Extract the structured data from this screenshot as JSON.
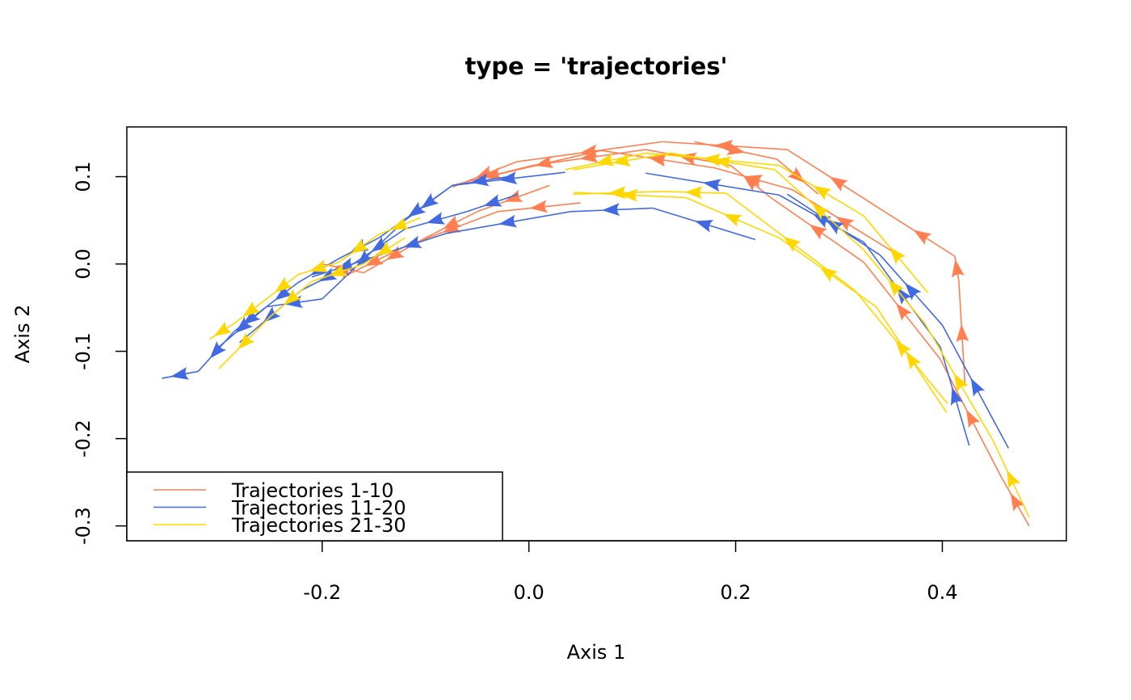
{
  "chart_data": {
    "type": "line",
    "title": "type = 'trajectories'",
    "xlabel": "Axis 1",
    "ylabel": "Axis 2",
    "xlim": [
      -0.389,
      0.52
    ],
    "ylim": [
      -0.317,
      0.157
    ],
    "xticks": [
      -0.2,
      0.0,
      0.2,
      0.4
    ],
    "xtick_labels": [
      "-0.2",
      "0.0",
      "0.2",
      "0.4"
    ],
    "yticks": [
      -0.3,
      -0.2,
      -0.1,
      0.0,
      0.1
    ],
    "ytick_labels": [
      "-0.3",
      "-0.2",
      "-0.1",
      "0.0",
      "0.1"
    ],
    "grid": false,
    "legend_position": "bottom-left",
    "series": [
      {
        "name": "Trajectories 1-10",
        "color": "#FF7F50",
        "trajectories": [
          [
            [
              0.484,
              -0.3
            ],
            [
              0.457,
              -0.244
            ],
            [
              0.398,
              -0.109
            ],
            [
              0.324,
              0.002
            ],
            [
              0.234,
              0.076
            ],
            [
              0.195,
              0.113
            ],
            [
              0.113,
              0.131
            ],
            [
              0.004,
              0.113
            ],
            [
              -0.074,
              0.09
            ]
          ],
          [
            [
              0.422,
              -0.14
            ],
            [
              0.416,
              -0.02
            ],
            [
              0.412,
              0.009
            ],
            [
              0.348,
              0.057
            ],
            [
              0.25,
              0.131
            ],
            [
              0.129,
              0.14
            ],
            [
              -0.012,
              0.117
            ],
            [
              -0.074,
              0.088
            ]
          ],
          [
            [
              0.355,
              0.012
            ],
            [
              0.255,
              0.085
            ],
            [
              0.18,
              0.11
            ],
            [
              0.07,
              0.13
            ],
            [
              -0.04,
              0.1
            ]
          ],
          [
            [
              0.05,
              0.07
            ],
            [
              -0.03,
              0.06
            ],
            [
              -0.12,
              0.02
            ],
            [
              -0.18,
              -0.015
            ]
          ],
          [
            [
              0.02,
              0.09
            ],
            [
              -0.05,
              0.06
            ],
            [
              -0.1,
              0.03
            ],
            [
              -0.16,
              -0.01
            ],
            [
              -0.2,
              0.0
            ]
          ],
          [
            [
              0.16,
              0.14
            ],
            [
              0.24,
              0.12
            ],
            [
              0.28,
              0.08
            ]
          ]
        ]
      },
      {
        "name": "Trajectories 11-20",
        "color": "#4169E1",
        "trajectories": [
          [
            [
              0.426,
              -0.208
            ],
            [
              0.398,
              -0.095
            ],
            [
              0.324,
              0.025
            ],
            [
              0.242,
              0.079
            ],
            [
              0.113,
              0.104
            ]
          ],
          [
            [
              0.464,
              -0.211
            ],
            [
              0.4,
              -0.07
            ],
            [
              0.34,
              0.01
            ],
            [
              0.25,
              0.08
            ]
          ],
          [
            [
              0.219,
              0.028
            ],
            [
              0.12,
              0.064
            ],
            [
              0.04,
              0.06
            ],
            [
              -0.08,
              0.035
            ],
            [
              -0.145,
              0.01
            ],
            [
              -0.21,
              -0.015
            ]
          ],
          [
            [
              -0.02,
              0.1
            ],
            [
              -0.074,
              0.09
            ],
            [
              -0.145,
              0.03
            ],
            [
              -0.184,
              0.006
            ],
            [
              -0.223,
              -0.021
            ],
            [
              -0.254,
              -0.049
            ],
            [
              -0.285,
              -0.077
            ],
            [
              -0.32,
              -0.123
            ],
            [
              -0.355,
              -0.131
            ]
          ],
          [
            [
              0.035,
              0.105
            ],
            [
              -0.074,
              0.09
            ],
            [
              -0.12,
              0.05
            ],
            [
              -0.2,
              -0.04
            ],
            [
              -0.254,
              -0.049
            ],
            [
              -0.3,
              -0.095
            ]
          ],
          [
            [
              -0.01,
              0.08
            ],
            [
              -0.06,
              0.06
            ],
            [
              -0.12,
              0.04
            ],
            [
              -0.17,
              0.0
            ],
            [
              -0.22,
              -0.03
            ],
            [
              -0.28,
              -0.09
            ]
          ]
        ]
      },
      {
        "name": "Trajectories 21-30",
        "color": "#FFD700",
        "trajectories": [
          [
            [
              0.484,
              -0.29
            ],
            [
              0.449,
              -0.202
            ],
            [
              0.383,
              -0.068
            ],
            [
              0.324,
              0.016
            ],
            [
              0.238,
              0.108
            ],
            [
              0.137,
              0.127
            ],
            [
              0.043,
              0.108
            ]
          ],
          [
            [
              0.404,
              -0.17
            ],
            [
              0.336,
              -0.049
            ],
            [
              0.242,
              0.03
            ],
            [
              0.152,
              0.076
            ],
            [
              0.043,
              0.082
            ]
          ],
          [
            [
              0.386,
              -0.033
            ],
            [
              0.324,
              0.055
            ],
            [
              0.242,
              0.113
            ],
            [
              0.113,
              0.127
            ],
            [
              0.035,
              0.108
            ]
          ],
          [
            [
              0.405,
              -0.16
            ],
            [
              0.316,
              -0.031
            ],
            [
              0.191,
              0.081
            ],
            [
              0.129,
              0.083
            ],
            [
              0.043,
              0.08
            ]
          ],
          [
            [
              -0.105,
              0.053
            ],
            [
              -0.145,
              0.034
            ],
            [
              -0.184,
              0.002
            ],
            [
              -0.223,
              -0.012
            ],
            [
              -0.254,
              -0.04
            ],
            [
              -0.285,
              -0.068
            ],
            [
              -0.309,
              -0.086
            ]
          ],
          [
            [
              -0.12,
              0.03
            ],
            [
              -0.16,
              0.0
            ],
            [
              -0.21,
              -0.02
            ],
            [
              -0.25,
              -0.06
            ],
            [
              -0.3,
              -0.12
            ]
          ]
        ]
      }
    ]
  }
}
